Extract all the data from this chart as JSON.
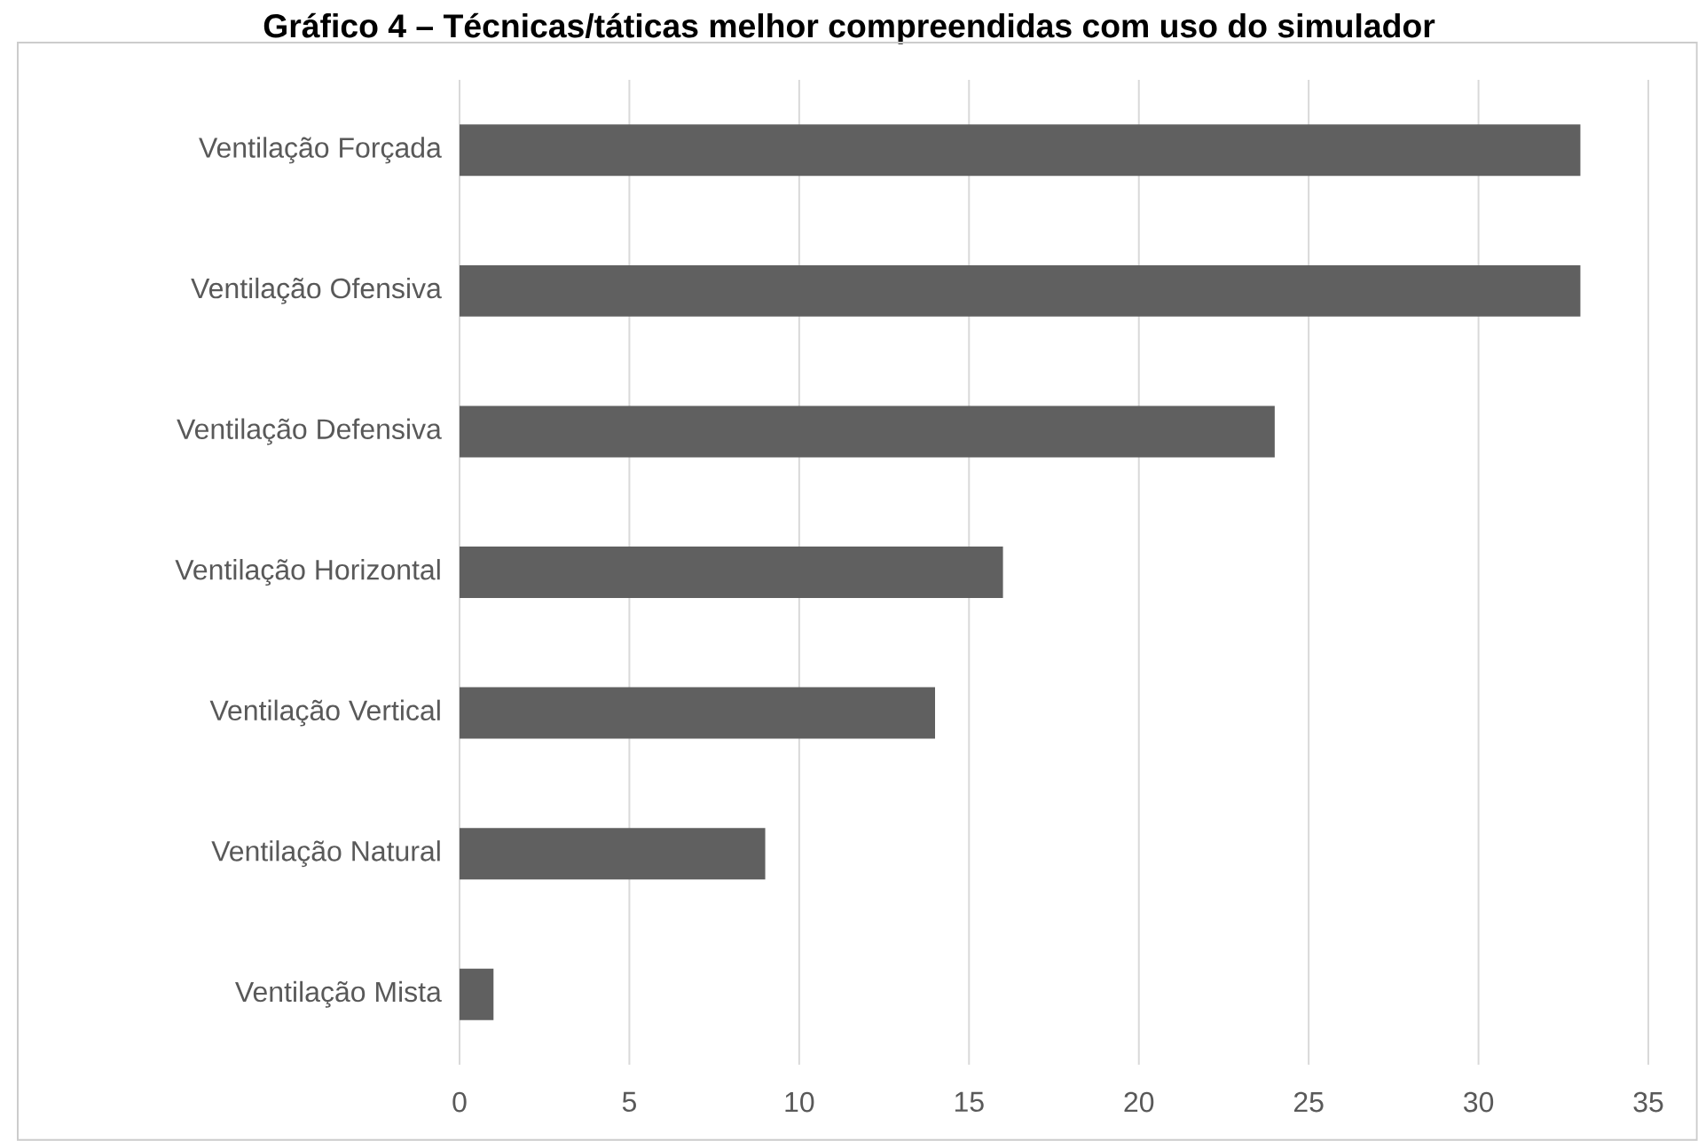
{
  "chart_data": {
    "type": "bar",
    "orientation": "horizontal",
    "title": "Gráfico 4 – Técnicas/táticas melhor compreendidas com uso do simulador",
    "categories": [
      "Ventilação Forçada",
      "Ventilação Ofensiva",
      "Ventilação Defensiva",
      "Ventilação Horizontal",
      "Ventilação Vertical",
      "Ventilação Natural",
      "Ventilação Mista"
    ],
    "values": [
      33,
      33,
      24,
      16,
      14,
      9,
      1
    ],
    "color": "#606060",
    "xlim": [
      0,
      35
    ],
    "xticks": [
      0,
      5,
      10,
      15,
      20,
      25,
      30,
      35
    ],
    "grid": "x"
  }
}
